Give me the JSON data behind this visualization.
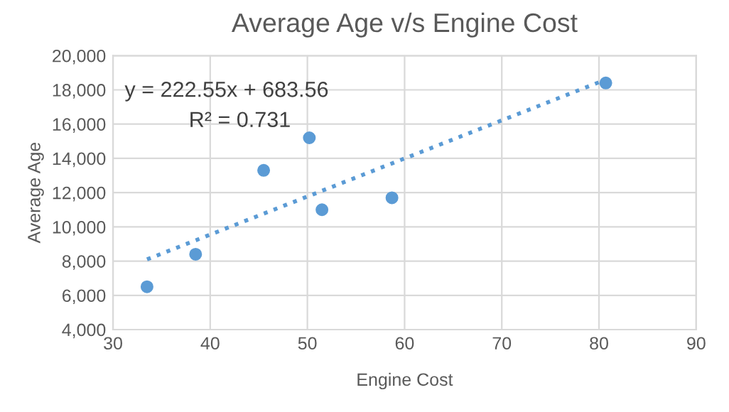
{
  "chart_data": {
    "type": "scatter",
    "title": "Average Age v/s Engine Cost",
    "xlabel": "Engine Cost",
    "ylabel": "Average Age",
    "series": [
      {
        "color": "#5b9bd5",
        "marker": "circle",
        "x": [
          33.5,
          38.5,
          45.5,
          50.2,
          51.5,
          58.7,
          80.7
        ],
        "values": [
          6500,
          8400,
          13300,
          15200,
          11000,
          11700,
          18400
        ]
      },
      {
        "type": "line",
        "color": "#5b9bd5",
        "line_style": "dotted",
        "marker": "none",
        "x": [
          33.5,
          80.7
        ],
        "values": [
          8100,
          18600
        ]
      }
    ],
    "annotations": [
      "y = 222.55x + 683.56",
      "R² = 0.731"
    ],
    "xlim": [
      30,
      90
    ],
    "xticks": [
      30,
      40,
      50,
      60,
      70,
      80,
      90
    ],
    "ylim": [
      4000,
      20000
    ],
    "yticks": [
      {
        "value": 4000,
        "label": "4,000"
      },
      {
        "value": 6000,
        "label": "6,000"
      },
      {
        "value": 8000,
        "label": "8,000"
      },
      {
        "value": 10000,
        "label": "10,000"
      },
      {
        "value": 12000,
        "label": "12,000"
      },
      {
        "value": 14000,
        "label": "14,000"
      },
      {
        "value": 16000,
        "label": "16,000"
      },
      {
        "value": 18000,
        "label": "18,000"
      },
      {
        "value": 20000,
        "label": "20,000"
      }
    ],
    "grid": true,
    "legend": false
  }
}
